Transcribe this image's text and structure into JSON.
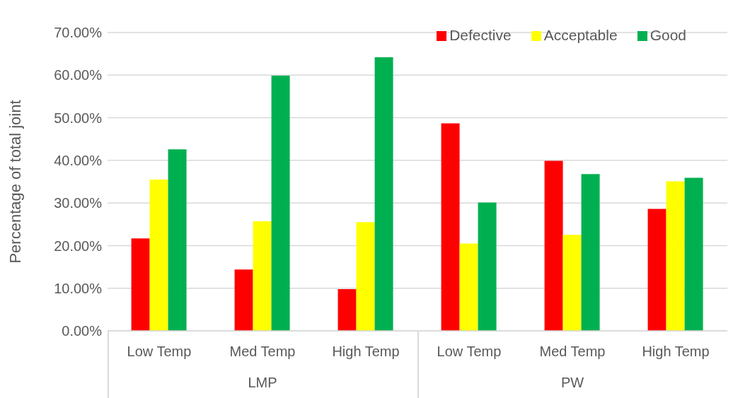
{
  "chart_data": {
    "type": "bar",
    "ylabel": "Percentage of total joint",
    "categories": [
      "Low Temp",
      "Med Temp",
      "High Temp",
      "Low Temp",
      "Med Temp",
      "High Temp"
    ],
    "series": [
      {
        "name": "Defective",
        "color": "#ff0000",
        "values": [
          21.7,
          14.4,
          9.8,
          48.7,
          39.9,
          28.6
        ]
      },
      {
        "name": "Acceptable",
        "color": "#ffff00",
        "values": [
          35.5,
          25.7,
          25.5,
          20.5,
          22.5,
          35.1
        ]
      },
      {
        "name": "Good",
        "color": "#00b050",
        "values": [
          42.6,
          59.9,
          64.2,
          30.1,
          36.8,
          35.9
        ]
      }
    ],
    "ylim": [
      0,
      70
    ],
    "yticks": [
      {
        "value": 0,
        "label": "0.00%"
      },
      {
        "value": 10,
        "label": "10.00%"
      },
      {
        "value": 20,
        "label": "20.00%"
      },
      {
        "value": 30,
        "label": "30.00%"
      },
      {
        "value": 40,
        "label": "40.00%"
      },
      {
        "value": 50,
        "label": "50.00%"
      },
      {
        "value": 60,
        "label": "60.00%"
      },
      {
        "value": 70,
        "label": "70.00%"
      }
    ],
    "annotations": [
      "LMP",
      "PW"
    ],
    "grid": "y",
    "legend": "top right"
  }
}
